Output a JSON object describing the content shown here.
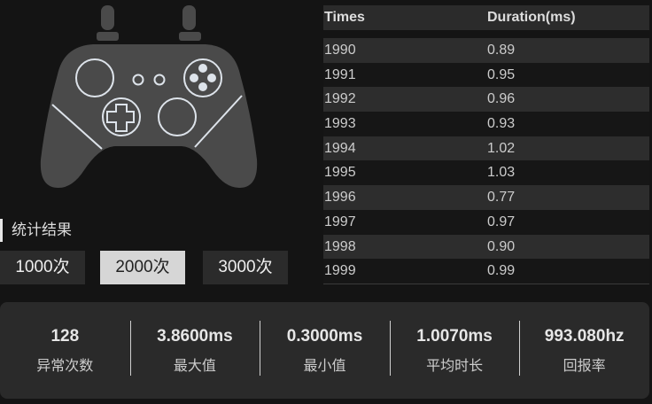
{
  "section_title": "统计结果",
  "sample_buttons": [
    {
      "label": "1000次",
      "active": false
    },
    {
      "label": "2000次",
      "active": true
    },
    {
      "label": "3000次",
      "active": false
    }
  ],
  "table": {
    "headers": [
      "Times",
      "Duration(ms)"
    ],
    "rows": [
      [
        "1990",
        "0.89"
      ],
      [
        "1991",
        "0.95"
      ],
      [
        "1992",
        "0.96"
      ],
      [
        "1993",
        "0.93"
      ],
      [
        "1994",
        "1.02"
      ],
      [
        "1995",
        "1.03"
      ],
      [
        "1996",
        "0.77"
      ],
      [
        "1997",
        "0.97"
      ],
      [
        "1998",
        "0.90"
      ],
      [
        "1999",
        "0.99"
      ]
    ]
  },
  "stats": [
    {
      "value": "128",
      "label": "异常次数"
    },
    {
      "value": "3.8600ms",
      "label": "最大值"
    },
    {
      "value": "0.3000ms",
      "label": "最小值"
    },
    {
      "value": "1.0070ms",
      "label": "平均时长"
    },
    {
      "value": "993.080hz",
      "label": "回报率"
    }
  ],
  "icons": {
    "controller": "gamepad-icon"
  },
  "colors": {
    "background": "#141414",
    "controller": "#4a4a4a",
    "active_button": "#d6d6d6"
  }
}
